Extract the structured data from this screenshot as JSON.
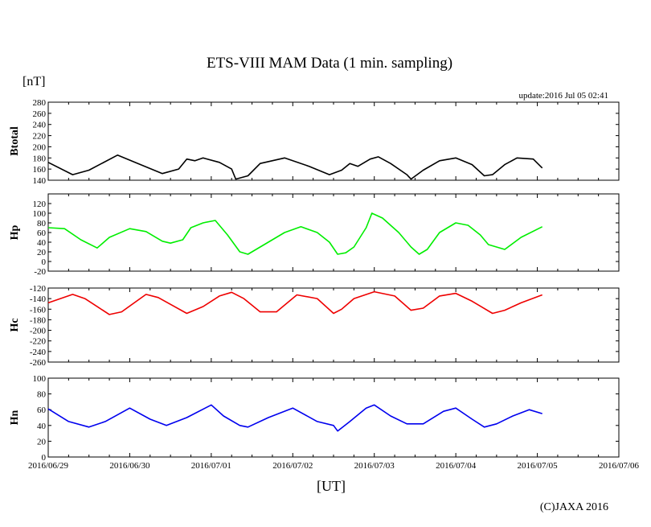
{
  "chart_data": {
    "type": "line",
    "title": "ETS-VIII MAM Data (1 min. sampling)",
    "unit_label": "[nT]",
    "update_text": "update:2016 Jul 05 02:41",
    "xlabel": "[UT]",
    "copyright": "(C)JAXA 2016",
    "x_unit": "days since 2016/06/29 00:00 UT",
    "xlim": [
      0,
      7
    ],
    "x_tick_labels": [
      "2016/06/29",
      "2016/06/30",
      "2016/07/01",
      "2016/07/02",
      "2016/07/03",
      "2016/07/04",
      "2016/07/05",
      "2016/07/06"
    ],
    "panels": [
      {
        "name": "Btotal",
        "color": "#000000",
        "ylim": [
          140,
          280
        ],
        "yticks": [
          140,
          160,
          180,
          200,
          220,
          240,
          260,
          280
        ],
        "x": [
          0,
          0.3,
          0.5,
          0.85,
          1.1,
          1.4,
          1.6,
          1.7,
          1.8,
          1.9,
          2.1,
          2.25,
          2.3,
          2.45,
          2.6,
          2.9,
          3.2,
          3.45,
          3.6,
          3.7,
          3.8,
          3.95,
          4.05,
          4.2,
          4.4,
          4.45,
          4.6,
          4.8,
          5.0,
          5.2,
          5.35,
          5.45,
          5.6,
          5.75,
          5.95,
          6.06
        ],
        "y": [
          172,
          150,
          158,
          185,
          170,
          152,
          160,
          178,
          175,
          180,
          172,
          160,
          142,
          148,
          170,
          180,
          165,
          150,
          158,
          170,
          165,
          178,
          182,
          170,
          150,
          142,
          158,
          175,
          180,
          168,
          148,
          150,
          168,
          180,
          178,
          162
        ]
      },
      {
        "name": "Hp",
        "color": "#00ee00",
        "ylim": [
          -20,
          140
        ],
        "yticks": [
          -20,
          0,
          20,
          40,
          60,
          80,
          100,
          120
        ],
        "x": [
          0,
          0.2,
          0.4,
          0.6,
          0.75,
          1.0,
          1.2,
          1.4,
          1.5,
          1.65,
          1.75,
          1.9,
          2.05,
          2.2,
          2.35,
          2.45,
          2.6,
          2.9,
          3.1,
          3.3,
          3.45,
          3.55,
          3.65,
          3.75,
          3.9,
          3.97,
          4.1,
          4.3,
          4.45,
          4.55,
          4.65,
          4.8,
          5.0,
          5.15,
          5.3,
          5.4,
          5.6,
          5.8,
          6.06
        ],
        "y": [
          70,
          68,
          45,
          28,
          50,
          68,
          62,
          42,
          38,
          45,
          70,
          80,
          85,
          55,
          20,
          15,
          30,
          60,
          72,
          60,
          40,
          15,
          18,
          30,
          70,
          100,
          90,
          60,
          30,
          15,
          25,
          60,
          80,
          75,
          55,
          35,
          25,
          50,
          72
        ]
      },
      {
        "name": "Hc",
        "color": "#ee0000",
        "ylim": [
          -260,
          -120
        ],
        "yticks": [
          -260,
          -240,
          -220,
          -200,
          -180,
          -160,
          -140,
          -120
        ],
        "x": [
          0,
          0.3,
          0.45,
          0.75,
          0.9,
          1.2,
          1.35,
          1.7,
          1.9,
          2.1,
          2.25,
          2.4,
          2.6,
          2.8,
          3.05,
          3.3,
          3.5,
          3.6,
          3.75,
          4.0,
          4.25,
          4.45,
          4.6,
          4.8,
          5.0,
          5.2,
          5.45,
          5.6,
          5.8,
          6.06
        ],
        "y": [
          -148,
          -132,
          -140,
          -170,
          -165,
          -132,
          -138,
          -168,
          -155,
          -135,
          -128,
          -140,
          -165,
          -165,
          -133,
          -140,
          -168,
          -160,
          -140,
          -127,
          -135,
          -162,
          -158,
          -135,
          -130,
          -145,
          -168,
          -162,
          -148,
          -133
        ]
      },
      {
        "name": "Hn",
        "color": "#0000ee",
        "ylim": [
          0,
          100
        ],
        "yticks": [
          0,
          20,
          40,
          60,
          80,
          100
        ],
        "x": [
          0,
          0.25,
          0.5,
          0.7,
          1.0,
          1.25,
          1.45,
          1.7,
          2.0,
          2.15,
          2.35,
          2.45,
          2.7,
          3.0,
          3.3,
          3.5,
          3.55,
          3.7,
          3.9,
          4.0,
          4.2,
          4.4,
          4.6,
          4.85,
          5.0,
          5.2,
          5.35,
          5.5,
          5.7,
          5.9,
          6.06
        ],
        "y": [
          61,
          45,
          38,
          45,
          62,
          48,
          40,
          50,
          66,
          52,
          40,
          38,
          50,
          62,
          45,
          40,
          33,
          45,
          62,
          66,
          52,
          42,
          42,
          58,
          62,
          48,
          38,
          42,
          52,
          60,
          55
        ]
      }
    ]
  }
}
